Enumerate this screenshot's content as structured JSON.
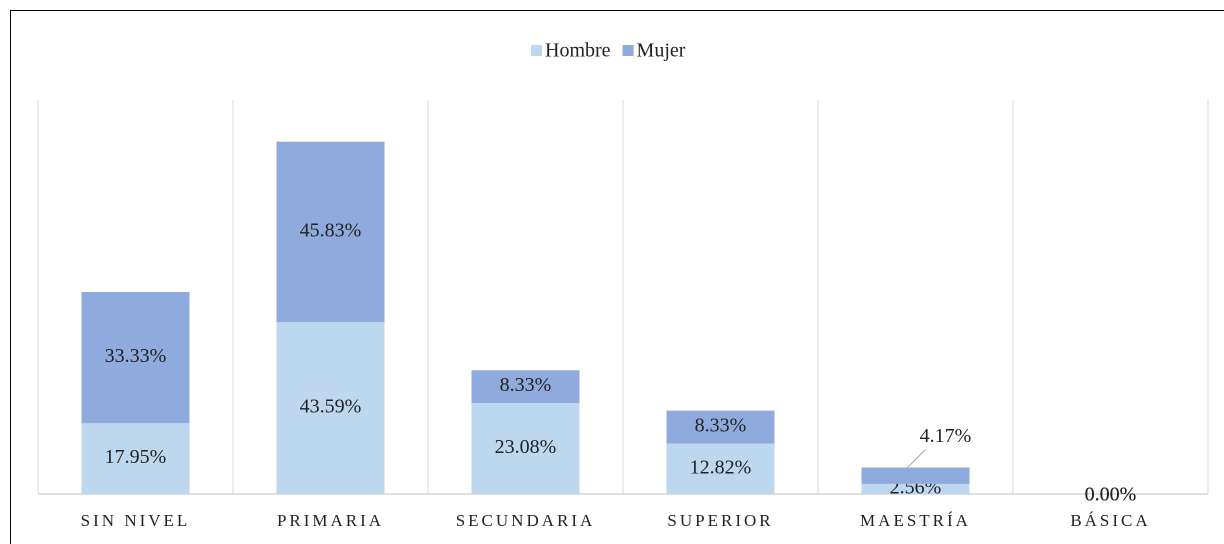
{
  "chart_data": {
    "type": "stacked_bar",
    "categories": [
      "SIN NIVEL",
      "PRIMARIA",
      "SECUNDARIA",
      "SUPERIOR",
      "MAESTRÍA",
      "BÁSICA"
    ],
    "series": [
      {
        "name": "Hombre",
        "color": "#bdd7ee",
        "values": [
          17.95,
          43.59,
          23.08,
          12.82,
          2.56,
          0
        ],
        "value_labels": [
          "17.95%",
          "43.59%",
          "23.08%",
          "12.82%",
          "2.56%",
          "0.00%"
        ]
      },
      {
        "name": "Mujer",
        "color": "#8faadc",
        "values": [
          33.33,
          45.83,
          8.33,
          8.33,
          4.17,
          0
        ],
        "value_labels": [
          "33.33%",
          "45.83%",
          "8.33%",
          "8.33%",
          "4.17%",
          "0.00%"
        ]
      }
    ],
    "ylim": [
      0,
      100
    ],
    "legend": "top"
  }
}
